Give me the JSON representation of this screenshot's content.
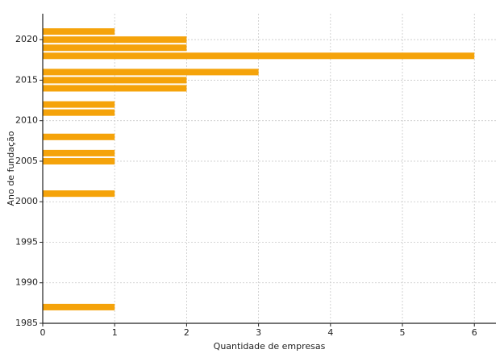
{
  "chart_data": {
    "type": "barh",
    "xlabel": "Quantidade de empresas",
    "ylabel": "Ano de fundação",
    "y": [
      2021,
      2020,
      2019,
      2018,
      2016,
      2015,
      2014,
      2012,
      2011,
      2008,
      2006,
      2005,
      2001,
      1987
    ],
    "values": [
      1,
      2,
      2,
      6,
      3,
      2,
      2,
      1,
      1,
      1,
      1,
      1,
      1,
      1
    ],
    "color": "#f5a30a",
    "xlim": [
      0,
      6.3
    ],
    "xticks": [
      0,
      1,
      2,
      3,
      4,
      5,
      6
    ],
    "ylim": [
      1985,
      2023.2
    ],
    "yticks": [
      1985,
      1990,
      1995,
      2000,
      2005,
      2010,
      2015,
      2020
    ],
    "grid": true
  }
}
